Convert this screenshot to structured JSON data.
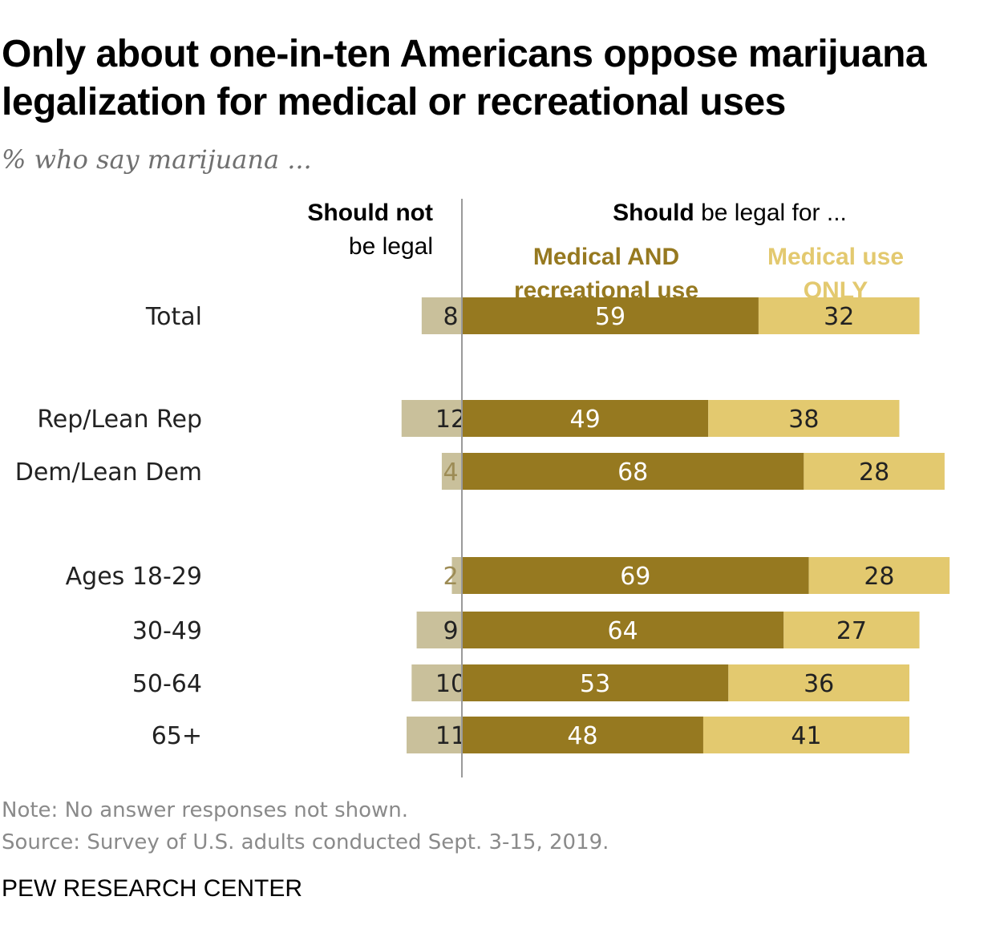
{
  "title": "Only about one-in-ten Americans oppose marijuana legalization for medical or recreational uses",
  "subtitle": "% who say marijuana ...",
  "note": "Note: No answer responses not shown.",
  "source": "Source: Survey of U.S. adults conducted Sept. 3-15, 2019.",
  "brand": "PEW RESEARCH CENTER",
  "chart_data": {
    "type": "bar",
    "orientation": "horizontal-diverging",
    "header_not_legal_bold": "Should not",
    "header_not_legal_rest": "be legal",
    "header_legal_bold": "Should",
    "header_legal_rest": " be legal for ...",
    "categories": [
      "Total",
      "Rep/Lean Rep",
      "Dem/Lean Dem",
      "Ages 18-29",
      "30-49",
      "50-64",
      "65+"
    ],
    "series": [
      {
        "name": "Should not be legal",
        "color": "#c9c09b",
        "values": [
          8,
          12,
          4,
          2,
          9,
          10,
          11
        ]
      },
      {
        "name": "Medical AND recreational use",
        "label_line1": "Medical AND",
        "label_line2": "recreational use",
        "color": "#967920",
        "values": [
          59,
          49,
          68,
          69,
          64,
          53,
          48
        ]
      },
      {
        "name": "Medical use ONLY",
        "label_line1": "Medical use",
        "label_line2": "ONLY",
        "color": "#e3c96f",
        "values": [
          32,
          38,
          28,
          28,
          27,
          36,
          41
        ]
      }
    ]
  }
}
